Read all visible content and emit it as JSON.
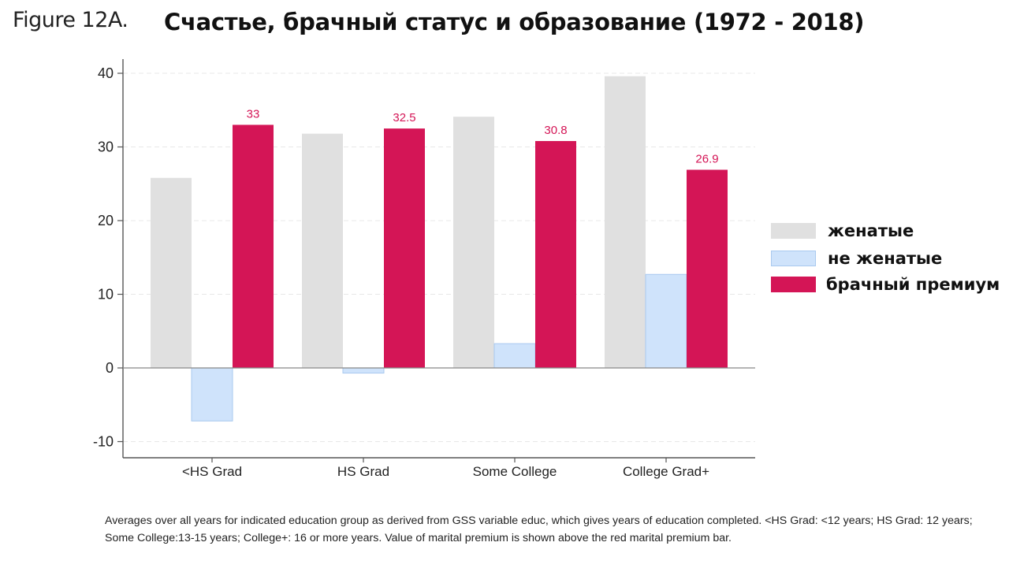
{
  "figure_label": "Figure 12A.",
  "title": "Счастье, брачный статус и образование (1972 - 2018)",
  "footnote": "Averages over all years for indicated education group as derived from GSS variable educ, which gives years of education completed.  <HS Grad: <12 years; HS Grad: 12 years; Some College:13-15 years; College+: 16 or more years.  Value of marital premium is shown above the red marital premium bar.",
  "colors": {
    "married": "#e0e0e0",
    "unmarried_fill": "#cfe3fb",
    "unmarried_stroke": "#a9c9ef",
    "premium": "#d41556",
    "premium_label": "#d41556",
    "axis": "#555555",
    "grid": "#e8e8e8"
  },
  "chart_data": {
    "type": "bar",
    "categories": [
      "<HS Grad",
      "HS Grad",
      "Some College",
      "College Grad+"
    ],
    "series": [
      {
        "name": "женатые",
        "key": "married",
        "values": [
          25.8,
          31.8,
          34.1,
          39.6
        ]
      },
      {
        "name": "не женатые",
        "key": "unmarried",
        "values": [
          -7.2,
          -0.7,
          3.3,
          12.7
        ]
      },
      {
        "name": "брачный премиум",
        "key": "premium",
        "values": [
          33,
          32.5,
          30.8,
          26.9
        ]
      }
    ],
    "data_labels": [
      "33",
      "32.5",
      "30.8",
      "26.9"
    ],
    "ylim": [
      -11,
      42
    ],
    "yticks": [
      -10,
      0,
      10,
      20,
      30,
      40
    ],
    "ytick_labels": [
      "-10",
      "0",
      "10",
      "20",
      "30",
      "40"
    ],
    "grid": true,
    "legend_position": "right"
  }
}
